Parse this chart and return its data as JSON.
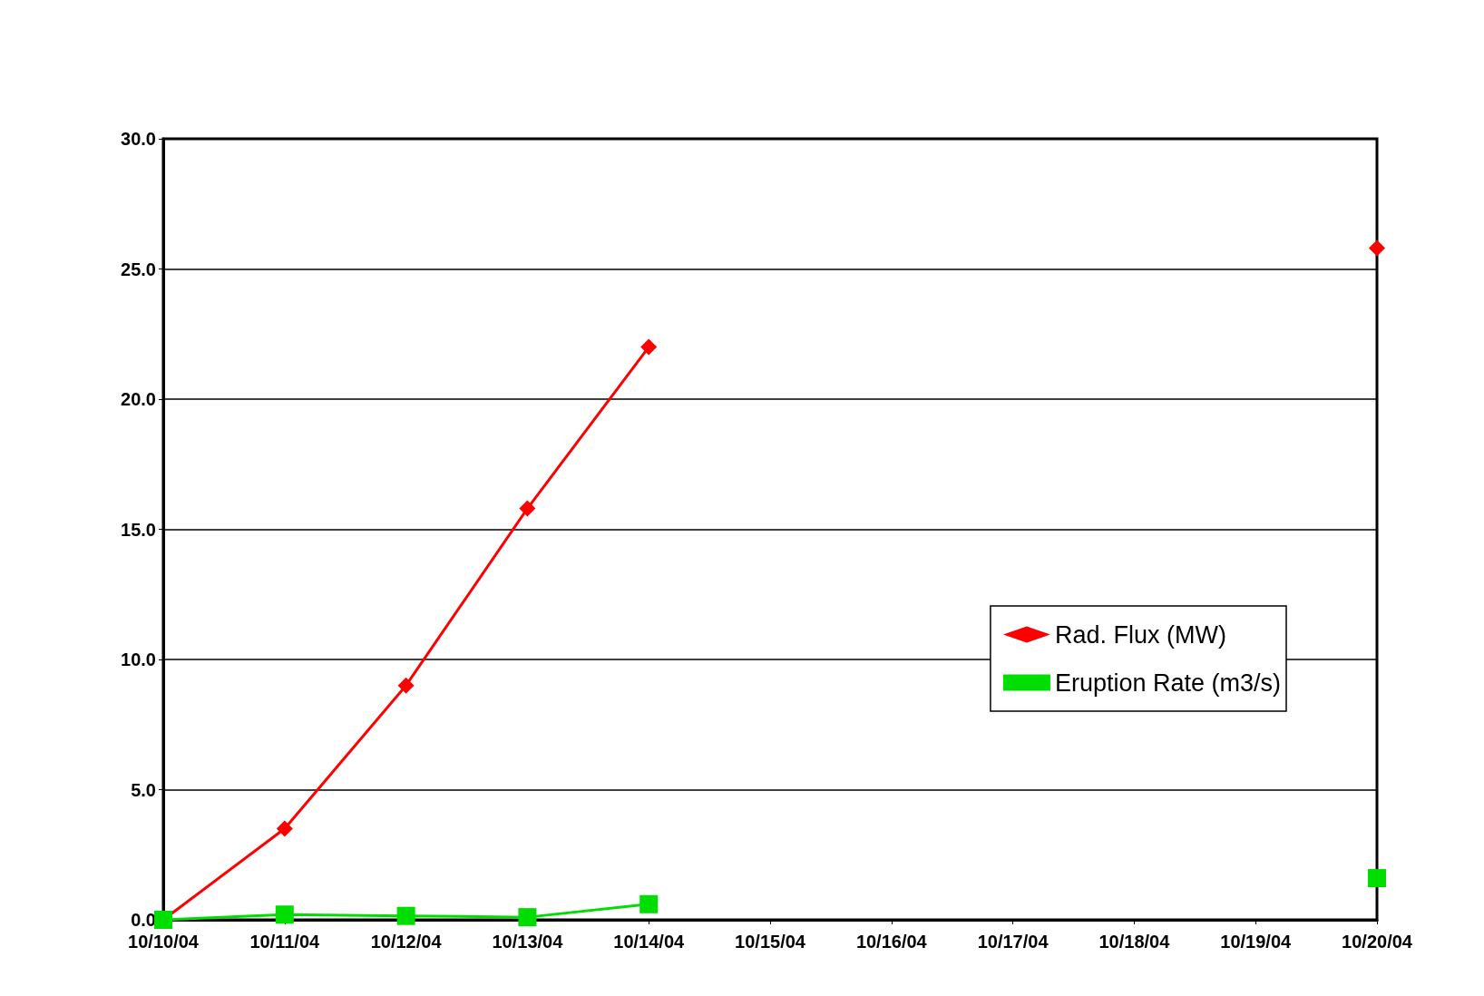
{
  "chart_data": {
    "type": "line",
    "categories": [
      "10/10/04",
      "10/11/04",
      "10/12/04",
      "10/13/04",
      "10/14/04",
      "10/15/04",
      "10/16/04",
      "10/17/04",
      "10/18/04",
      "10/19/04",
      "10/20/04"
    ],
    "series": [
      {
        "name": "Rad. Flux (MW)",
        "color": "#ff0000",
        "marker": "diamond",
        "values": [
          0,
          3.5,
          9.0,
          15.8,
          22.0,
          null,
          null,
          null,
          null,
          null,
          25.8
        ]
      },
      {
        "name": "Eruption Rate (m3/s)",
        "color": "#00dd00",
        "marker": "square",
        "values": [
          0,
          0.2,
          0.15,
          0.1,
          0.6,
          null,
          null,
          null,
          null,
          null,
          1.6
        ]
      }
    ],
    "ylim": [
      0,
      30
    ],
    "yticks": [
      {
        "value": 0,
        "label": "0.0"
      },
      {
        "value": 5,
        "label": "5.0"
      },
      {
        "value": 10,
        "label": "10.0"
      },
      {
        "value": 15,
        "label": "15.0"
      },
      {
        "value": 20,
        "label": "20.0"
      },
      {
        "value": 25,
        "label": "25.0"
      },
      {
        "value": 30,
        "label": "30.0"
      }
    ],
    "grid": "y",
    "legend": "right",
    "line_style": "solid"
  }
}
